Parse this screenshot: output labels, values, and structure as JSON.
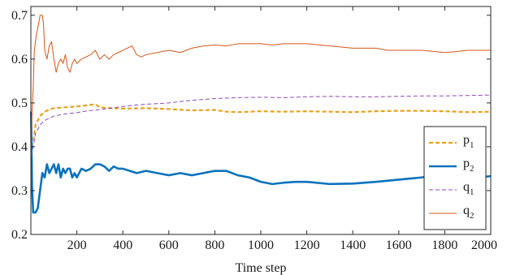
{
  "chart_data": {
    "type": "line",
    "title": "",
    "xlabel": "Time step",
    "ylabel": "",
    "xlim": [
      0,
      2000
    ],
    "ylim": [
      0.2,
      0.72
    ],
    "xticks": [
      200,
      400,
      600,
      800,
      1000,
      1200,
      1400,
      1600,
      1800,
      2000
    ],
    "yticks": [
      0.2,
      0.3,
      0.4,
      0.5,
      0.6,
      0.7
    ],
    "grid": false,
    "legend_position": "bottom-right",
    "series": [
      {
        "name": "p",
        "subscript": "1",
        "color": "#e8a21a",
        "style": "dashed",
        "x": [
          1,
          10,
          20,
          40,
          60,
          80,
          100,
          150,
          200,
          250,
          280,
          300,
          350,
          400,
          500,
          600,
          700,
          800,
          850,
          900,
          1000,
          1100,
          1200,
          1300,
          1400,
          1500,
          1600,
          1700,
          1800,
          1900,
          2000
        ],
        "y": [
          0.4,
          0.41,
          0.45,
          0.47,
          0.48,
          0.485,
          0.488,
          0.49,
          0.492,
          0.495,
          0.497,
          0.49,
          0.488,
          0.487,
          0.488,
          0.486,
          0.483,
          0.484,
          0.48,
          0.479,
          0.481,
          0.48,
          0.481,
          0.48,
          0.479,
          0.481,
          0.482,
          0.482,
          0.481,
          0.479,
          0.48
        ]
      },
      {
        "name": "p",
        "subscript": "2",
        "color": "#0a72bd",
        "style": "solid",
        "x": [
          1,
          5,
          10,
          20,
          30,
          40,
          50,
          60,
          70,
          80,
          90,
          100,
          110,
          120,
          130,
          140,
          150,
          160,
          170,
          180,
          190,
          200,
          220,
          240,
          260,
          280,
          300,
          320,
          340,
          360,
          380,
          400,
          430,
          460,
          500,
          550,
          600,
          650,
          700,
          750,
          800,
          850,
          900,
          950,
          1000,
          1050,
          1100,
          1150,
          1200,
          1300,
          1400,
          1500,
          1600,
          1700,
          1750,
          1800,
          1850,
          1900,
          1950,
          2000
        ],
        "y": [
          0.48,
          0.31,
          0.25,
          0.25,
          0.26,
          0.3,
          0.34,
          0.33,
          0.36,
          0.34,
          0.35,
          0.36,
          0.34,
          0.36,
          0.33,
          0.35,
          0.34,
          0.35,
          0.35,
          0.33,
          0.34,
          0.33,
          0.35,
          0.345,
          0.35,
          0.36,
          0.36,
          0.355,
          0.345,
          0.355,
          0.35,
          0.35,
          0.345,
          0.34,
          0.345,
          0.34,
          0.335,
          0.34,
          0.335,
          0.34,
          0.345,
          0.345,
          0.335,
          0.33,
          0.32,
          0.315,
          0.318,
          0.32,
          0.32,
          0.315,
          0.316,
          0.32,
          0.325,
          0.33,
          0.335,
          0.335,
          0.33,
          0.325,
          0.33,
          0.333
        ]
      },
      {
        "name": "q",
        "subscript": "1",
        "color": "#8e4ab6",
        "style": "dashed-fine",
        "x": [
          1,
          10,
          20,
          40,
          60,
          80,
          100,
          150,
          200,
          250,
          300,
          350,
          400,
          450,
          500,
          600,
          700,
          800,
          900,
          1000,
          1100,
          1200,
          1300,
          1400,
          1500,
          1600,
          1700,
          1800,
          1900,
          2000
        ],
        "y": [
          0.38,
          0.4,
          0.43,
          0.45,
          0.46,
          0.465,
          0.47,
          0.475,
          0.478,
          0.482,
          0.485,
          0.488,
          0.492,
          0.495,
          0.497,
          0.5,
          0.506,
          0.51,
          0.512,
          0.513,
          0.512,
          0.514,
          0.515,
          0.514,
          0.514,
          0.515,
          0.516,
          0.516,
          0.517,
          0.518
        ]
      },
      {
        "name": "q",
        "subscript": "2",
        "color": "#d4551a",
        "style": "solid-thin",
        "x": [
          1,
          5,
          10,
          15,
          20,
          25,
          30,
          40,
          50,
          55,
          60,
          70,
          80,
          90,
          100,
          110,
          120,
          130,
          140,
          150,
          160,
          170,
          180,
          190,
          200,
          220,
          240,
          260,
          280,
          300,
          320,
          340,
          360,
          380,
          400,
          420,
          440,
          460,
          480,
          500,
          550,
          600,
          650,
          700,
          750,
          800,
          850,
          900,
          1000,
          1050,
          1100,
          1200,
          1300,
          1400,
          1500,
          1550,
          1600,
          1700,
          1800,
          1850,
          1900,
          1950,
          2000
        ],
        "y": [
          0.4,
          0.48,
          0.53,
          0.62,
          0.64,
          0.66,
          0.67,
          0.7,
          0.7,
          0.68,
          0.62,
          0.6,
          0.63,
          0.64,
          0.6,
          0.57,
          0.59,
          0.6,
          0.59,
          0.61,
          0.58,
          0.57,
          0.59,
          0.6,
          0.59,
          0.6,
          0.605,
          0.61,
          0.62,
          0.6,
          0.61,
          0.6,
          0.61,
          0.615,
          0.62,
          0.625,
          0.63,
          0.61,
          0.605,
          0.61,
          0.615,
          0.62,
          0.615,
          0.625,
          0.63,
          0.632,
          0.63,
          0.635,
          0.635,
          0.632,
          0.635,
          0.635,
          0.63,
          0.625,
          0.625,
          0.62,
          0.62,
          0.62,
          0.615,
          0.617,
          0.62,
          0.62,
          0.62
        ]
      }
    ]
  }
}
